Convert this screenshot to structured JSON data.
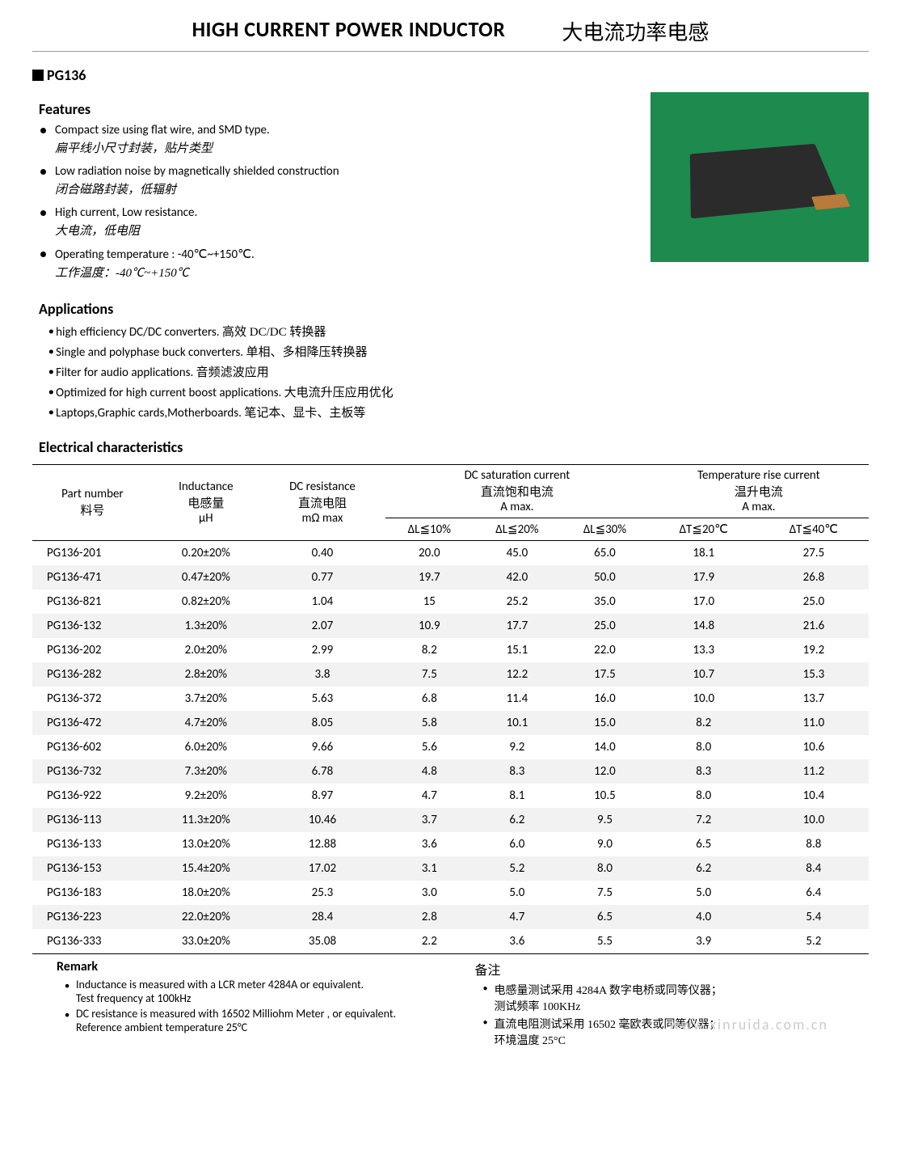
{
  "header": {
    "title_en": "HIGH CURRENT POWER INDUCTOR",
    "title_cn": "大电流功率电感"
  },
  "model": "PG136",
  "sections": {
    "features": "Features",
    "applications": "Applications",
    "electrical": "Electrical  characteristics",
    "remark_en": "Remark",
    "remark_cn": "备注"
  },
  "features": [
    {
      "en": "Compact size using flat wire, and SMD type.",
      "cn": "扁平线小尺寸封装，贴片类型"
    },
    {
      "en": "Low radiation noise by magnetically shielded construction",
      "cn": "闭合磁路封装，低辐射"
    },
    {
      "en": "High current, Low resistance.",
      "cn": "大电流，低电阻"
    },
    {
      "en": "Operating temperature : -40℃~+150℃.",
      "cn": "工作温度：-40℃~+150℃"
    }
  ],
  "applications": [
    {
      "en": "high efficiency DC/DC converters.",
      "cn": "高效 DC/DC 转换器"
    },
    {
      "en": "Single and polyphase buck converters.",
      "cn": "单相、多相降压转换器"
    },
    {
      "en": "Filter for audio applications.",
      "cn": "音频滤波应用"
    },
    {
      "en": "Optimized for high current boost applications.",
      "cn": "大电流升压应用优化"
    },
    {
      "en": "Laptops,Graphic cards,Motherboards.",
      "cn": "笔记本、显卡、主板等"
    }
  ],
  "table": {
    "headers": {
      "part_en": "Part number",
      "part_cn": "料号",
      "ind_en": "Inductance",
      "ind_cn": "电感量",
      "ind_unit": "μH",
      "dcr_en": "DC resistance",
      "dcr_cn": "直流电阻",
      "dcr_unit": "mΩ max",
      "sat_en": "DC saturation current",
      "sat_cn": "直流饱和电流",
      "sat_unit": "A max.",
      "sat_c1": "ΔL≦10%",
      "sat_c2": "ΔL≦20%",
      "sat_c3": "ΔL≦30%",
      "temp_en": "Temperature rise current",
      "temp_cn": "温升电流",
      "temp_unit": "A max.",
      "temp_c1": "ΔT≦20℃",
      "temp_c2": "ΔT≦40℃"
    },
    "rows": [
      [
        "PG136-201",
        "0.20±20%",
        "0.40",
        "20.0",
        "45.0",
        "65.0",
        "18.1",
        "27.5"
      ],
      [
        "PG136-471",
        "0.47±20%",
        "0.77",
        "19.7",
        "42.0",
        "50.0",
        "17.9",
        "26.8"
      ],
      [
        "PG136-821",
        "0.82±20%",
        "1.04",
        "15",
        "25.2",
        "35.0",
        "17.0",
        "25.0"
      ],
      [
        "PG136-132",
        "1.3±20%",
        "2.07",
        "10.9",
        "17.7",
        "25.0",
        "14.8",
        "21.6"
      ],
      [
        "PG136-202",
        "2.0±20%",
        "2.99",
        "8.2",
        "15.1",
        "22.0",
        "13.3",
        "19.2"
      ],
      [
        "PG136-282",
        "2.8±20%",
        "3.8",
        "7.5",
        "12.2",
        "17.5",
        "10.7",
        "15.3"
      ],
      [
        "PG136-372",
        "3.7±20%",
        "5.63",
        "6.8",
        "11.4",
        "16.0",
        "10.0",
        "13.7"
      ],
      [
        "PG136-472",
        "4.7±20%",
        "8.05",
        "5.8",
        "10.1",
        "15.0",
        "8.2",
        "11.0"
      ],
      [
        "PG136-602",
        "6.0±20%",
        "9.66",
        "5.6",
        "9.2",
        "14.0",
        "8.0",
        "10.6"
      ],
      [
        "PG136-732",
        "7.3±20%",
        "6.78",
        "4.8",
        "8.3",
        "12.0",
        "8.3",
        "11.2"
      ],
      [
        "PG136-922",
        "9.2±20%",
        "8.97",
        "4.7",
        "8.1",
        "10.5",
        "8.0",
        "10.4"
      ],
      [
        "PG136-113",
        "11.3±20%",
        "10.46",
        "3.7",
        "6.2",
        "9.5",
        "7.2",
        "10.0"
      ],
      [
        "PG136-133",
        "13.0±20%",
        "12.88",
        "3.6",
        "6.0",
        "9.0",
        "6.5",
        "8.8"
      ],
      [
        "PG136-153",
        "15.4±20%",
        "17.02",
        "3.1",
        "5.2",
        "8.0",
        "6.2",
        "8.4"
      ],
      [
        "PG136-183",
        "18.0±20%",
        "25.3",
        "3.0",
        "5.0",
        "7.5",
        "5.0",
        "6.4"
      ],
      [
        "PG136-223",
        "22.0±20%",
        "28.4",
        "2.8",
        "4.7",
        "6.5",
        "4.0",
        "5.4"
      ],
      [
        "PG136-333",
        "33.0±20%",
        "35.08",
        "2.2",
        "3.6",
        "5.5",
        "3.9",
        "5.2"
      ]
    ]
  },
  "remarks_en": [
    {
      "main": "Inductance is measured with a LCR meter 4284A or equivalent.",
      "sub": "Test frequency at 100kHz"
    },
    {
      "main": "DC resistance is measured with 16502 Milliohm Meter , or equivalent.",
      "sub": "Reference ambient temperature 25°C"
    }
  ],
  "remarks_cn": [
    {
      "main": "电感量测试采用 4284A  数字电桥或同等仪器；",
      "sub": "测试频率 100KHz"
    },
    {
      "main": "直流电阻测试采用 16502 毫欧表或同等仪器；",
      "sub": "环境温度 25°C"
    }
  ],
  "watermark": "www.xinruida.com.cn",
  "colors": {
    "stripe": "#f2f2f2",
    "photo_bg": "#1d8a4e",
    "chip": "#2b2b2b"
  }
}
